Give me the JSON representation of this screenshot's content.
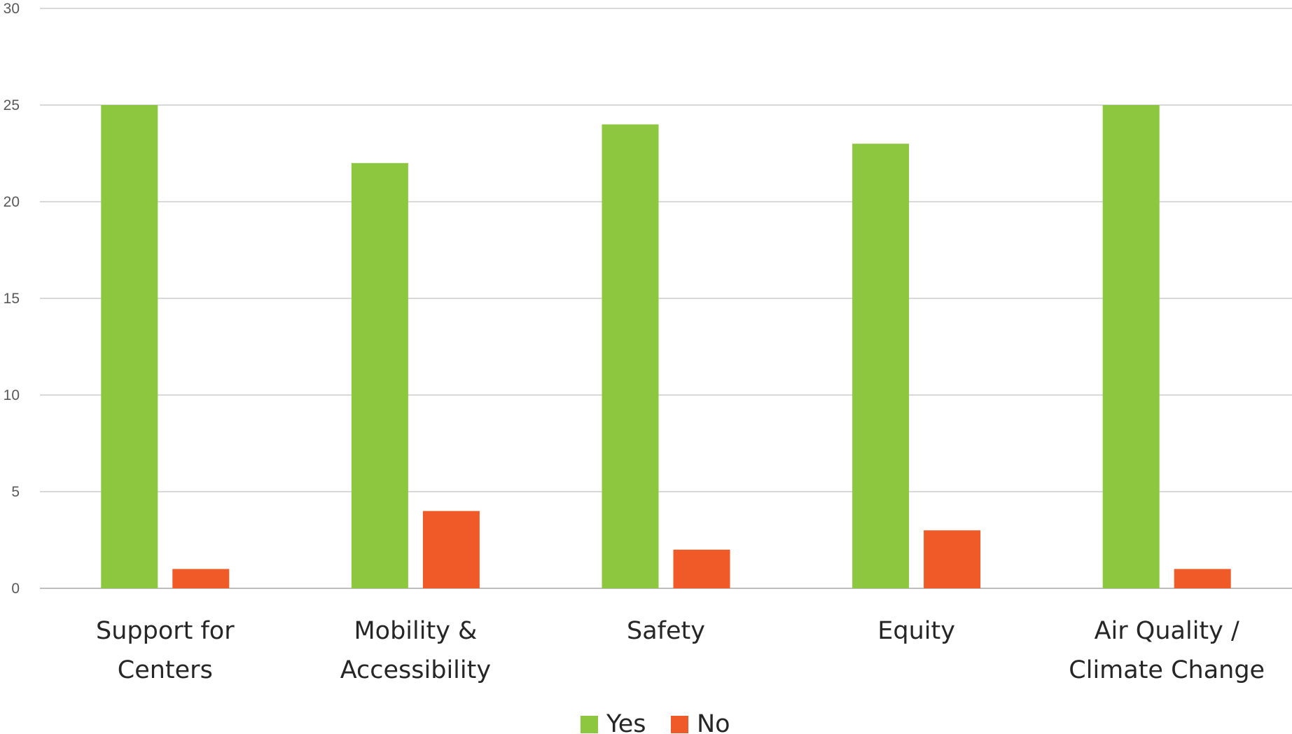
{
  "chart_data": {
    "type": "bar",
    "title": "",
    "xlabel": "",
    "ylabel": "",
    "categories": [
      [
        "Support for",
        "Centers"
      ],
      [
        "Mobility &",
        "Accessibility"
      ],
      [
        "Safety"
      ],
      [
        "Equity"
      ],
      [
        "Air Quality /",
        "Climate Change"
      ]
    ],
    "series": [
      {
        "name": "Yes",
        "color": "#8dc63f",
        "values": [
          25,
          22,
          24,
          23,
          25
        ]
      },
      {
        "name": "No",
        "color": "#f05a28",
        "values": [
          1,
          4,
          2,
          3,
          1
        ]
      }
    ],
    "ylim": [
      0,
      30
    ],
    "yticks": [
      0,
      5,
      10,
      15,
      20,
      25,
      30
    ],
    "grid": true,
    "legend": "bottom-center"
  }
}
